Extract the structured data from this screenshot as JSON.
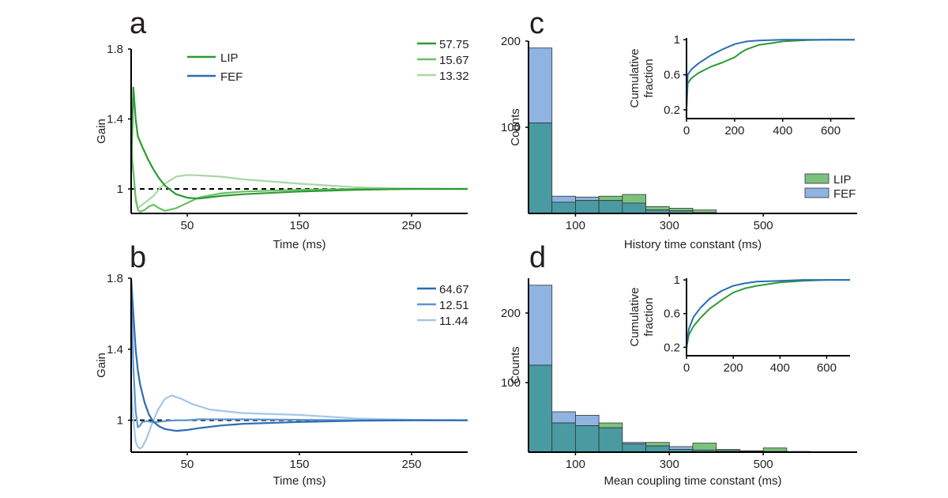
{
  "colors": {
    "lip_dark": "#2e9a34",
    "lip_mid": "#6bbf67",
    "lip_light": "#a9d8a3",
    "fef_dark": "#2a6db5",
    "fef_mid": "#5e95d0",
    "fef_light": "#a4c6e8",
    "hist_lip": "#7cc27e",
    "hist_fef": "#8fb4e2",
    "hist_overlap": "#4a9aa2",
    "baseline": "#000000"
  },
  "chart_data": [
    {
      "id": "a",
      "panel_label": "a",
      "type": "line",
      "xlabel": "Time (ms)",
      "ylabel": "Gain",
      "xlim": [
        0,
        300
      ],
      "ylim": [
        0.86,
        1.8
      ],
      "xticks": [
        50,
        150,
        250
      ],
      "yticks": [
        1,
        1.4,
        1.8
      ],
      "baseline": 1,
      "legend": [
        {
          "label": "LIP",
          "color": "#2e9a34"
        },
        {
          "label": "FEF",
          "color": "#2a6db5"
        }
      ],
      "series": [
        {
          "name": "57.75",
          "color": "#2e9a34",
          "x": [
            0,
            2,
            4,
            6,
            10,
            15,
            20,
            25,
            30,
            40,
            50,
            60,
            80,
            100,
            150,
            200,
            250,
            300
          ],
          "y": [
            1.1,
            1.58,
            1.4,
            1.3,
            1.24,
            1.17,
            1.11,
            1.06,
            1.02,
            0.97,
            0.95,
            0.945,
            0.96,
            0.97,
            0.985,
            0.995,
            1,
            1
          ]
        },
        {
          "name": "15.67",
          "color": "#6bbf67",
          "x": [
            0,
            2,
            4,
            6,
            8,
            12,
            16,
            20,
            25,
            30,
            40,
            50,
            60,
            80,
            100,
            150,
            200,
            250,
            300
          ],
          "y": [
            1.2,
            1.1,
            0.95,
            0.88,
            0.87,
            0.88,
            0.9,
            0.91,
            0.89,
            0.875,
            0.89,
            0.92,
            0.95,
            0.975,
            0.985,
            0.995,
            1,
            1,
            1
          ]
        },
        {
          "name": "13.32",
          "color": "#a9d8a3",
          "x": [
            0,
            2,
            4,
            6,
            8,
            12,
            16,
            20,
            25,
            30,
            40,
            50,
            60,
            80,
            100,
            150,
            200,
            250,
            300
          ],
          "y": [
            1.3,
            1.1,
            0.93,
            0.89,
            0.9,
            0.92,
            0.94,
            0.96,
            1,
            1.03,
            1.07,
            1.08,
            1.078,
            1.07,
            1.055,
            1.03,
            1.01,
            1.002,
            1
          ]
        }
      ]
    },
    {
      "id": "b",
      "panel_label": "b",
      "type": "line",
      "xlabel": "Time (ms)",
      "ylabel": "Gain",
      "xlim": [
        0,
        300
      ],
      "ylim": [
        0.82,
        1.8
      ],
      "xticks": [
        50,
        150,
        250
      ],
      "yticks": [
        1,
        1.4,
        1.8
      ],
      "baseline": 1,
      "series": [
        {
          "name": "64.67",
          "color": "#2a6db5",
          "x": [
            0,
            2,
            4,
            6,
            8,
            12,
            16,
            20,
            25,
            30,
            40,
            50,
            60,
            80,
            100,
            150,
            200,
            250,
            300
          ],
          "y": [
            1.8,
            1.6,
            1.4,
            1.28,
            1.2,
            1.1,
            1.03,
            0.99,
            0.965,
            0.95,
            0.94,
            0.945,
            0.955,
            0.97,
            0.98,
            0.99,
            0.997,
            1,
            1
          ]
        },
        {
          "name": "12.51",
          "color": "#5e95d0",
          "x": [
            0,
            2,
            4,
            6,
            8,
            10,
            14,
            18,
            24,
            30,
            40,
            50,
            60,
            80,
            100,
            150,
            200,
            250,
            300
          ],
          "y": [
            1.75,
            1.3,
            1.05,
            0.96,
            0.97,
            0.99,
            0.995,
            0.99,
            0.99,
            0.995,
            1.0,
            1.0,
            1.005,
            1.005,
            1.005,
            1.002,
            1,
            1,
            1
          ]
        },
        {
          "name": "11.44",
          "color": "#a4c6e8",
          "x": [
            0,
            2,
            4,
            6,
            8,
            10,
            14,
            18,
            24,
            30,
            36,
            45,
            55,
            70,
            100,
            150,
            200,
            250,
            300
          ],
          "y": [
            1.2,
            1.0,
            0.88,
            0.85,
            0.84,
            0.85,
            0.9,
            0.97,
            1.06,
            1.12,
            1.14,
            1.12,
            1.09,
            1.06,
            1.04,
            1.03,
            1.01,
            1.002,
            1
          ]
        }
      ]
    },
    {
      "id": "c",
      "panel_label": "c",
      "type": "bar",
      "xlabel": "History time constant (ms)",
      "ylabel": "Counts",
      "xlim": [
        0,
        700
      ],
      "ylim": [
        0,
        200
      ],
      "xticks": [
        100,
        300,
        500
      ],
      "yticks": [
        100,
        200
      ],
      "bin_edges": [
        0,
        50,
        100,
        150,
        200,
        250,
        300,
        350,
        400,
        450,
        500,
        550,
        600,
        650,
        700
      ],
      "legend": [
        {
          "label": "LIP",
          "color": "#7cc27e"
        },
        {
          "label": "FEF",
          "color": "#8fb4e2"
        }
      ],
      "series": [
        {
          "name": "LIP",
          "color": "#7cc27e",
          "values": [
            105,
            13,
            15,
            20,
            22,
            8,
            6,
            4,
            0,
            0,
            0,
            0,
            0,
            0
          ]
        },
        {
          "name": "FEF",
          "color": "#8fb4e2",
          "values": [
            192,
            20,
            19,
            15,
            12,
            4,
            3,
            1,
            0,
            0,
            0,
            0,
            0,
            0
          ]
        }
      ],
      "inset": {
        "type": "line",
        "ylabel": "Cumulative fraction",
        "xlim": [
          0,
          700
        ],
        "ylim": [
          0.1,
          1.02
        ],
        "xticks": [
          0,
          200,
          400,
          600
        ],
        "yticks": [
          0.2,
          0.6,
          1
        ],
        "series": [
          {
            "name": "LIP",
            "color": "#2e9a34",
            "x": [
              0,
              5,
              20,
              50,
              100,
              150,
              200,
              230,
              250,
              300,
              350,
              400,
              500,
              600,
              700
            ],
            "y": [
              0.2,
              0.5,
              0.56,
              0.62,
              0.69,
              0.74,
              0.8,
              0.86,
              0.89,
              0.94,
              0.96,
              0.98,
              0.995,
              1,
              1
            ]
          },
          {
            "name": "FEF",
            "color": "#2a6db5",
            "x": [
              0,
              5,
              20,
              50,
              100,
              150,
              200,
              250,
              300,
              400,
              500,
              600,
              700
            ],
            "y": [
              0.25,
              0.6,
              0.66,
              0.73,
              0.82,
              0.89,
              0.95,
              0.98,
              0.99,
              1,
              1,
              1,
              1
            ]
          }
        ]
      }
    },
    {
      "id": "d",
      "panel_label": "d",
      "type": "bar",
      "xlabel": "Mean coupling time constant (ms)",
      "ylabel": "Counts",
      "xlim": [
        0,
        700
      ],
      "ylim": [
        0,
        250
      ],
      "xticks": [
        100,
        300,
        500
      ],
      "yticks": [
        100,
        200
      ],
      "bin_edges": [
        0,
        50,
        100,
        150,
        200,
        250,
        300,
        350,
        400,
        450,
        500,
        550,
        600,
        650,
        700
      ],
      "series": [
        {
          "name": "LIP",
          "color": "#7cc27e",
          "values": [
            125,
            42,
            38,
            42,
            12,
            14,
            4,
            13,
            4,
            2,
            6,
            1,
            0,
            0
          ]
        },
        {
          "name": "FEF",
          "color": "#8fb4e2",
          "values": [
            240,
            58,
            53,
            35,
            14,
            9,
            8,
            3,
            2,
            1,
            1,
            0,
            0,
            0
          ]
        }
      ],
      "inset": {
        "type": "line",
        "ylabel": "Cumulative fraction",
        "xlim": [
          0,
          700
        ],
        "ylim": [
          0.1,
          1.02
        ],
        "xticks": [
          0,
          200,
          400,
          600
        ],
        "yticks": [
          0.2,
          0.6,
          1
        ],
        "series": [
          {
            "name": "LIP",
            "color": "#2e9a34",
            "x": [
              0,
              10,
              30,
              60,
              100,
              150,
              200,
              250,
              300,
              400,
              500,
              600,
              700
            ],
            "y": [
              0.2,
              0.35,
              0.45,
              0.55,
              0.66,
              0.76,
              0.85,
              0.9,
              0.93,
              0.97,
              0.99,
              1,
              1
            ]
          },
          {
            "name": "FEF",
            "color": "#2a6db5",
            "x": [
              0,
              10,
              30,
              60,
              100,
              150,
              200,
              250,
              300,
              400,
              500,
              600,
              700
            ],
            "y": [
              0.2,
              0.42,
              0.56,
              0.67,
              0.78,
              0.87,
              0.93,
              0.96,
              0.98,
              0.99,
              1,
              1,
              1
            ]
          }
        ]
      }
    }
  ]
}
